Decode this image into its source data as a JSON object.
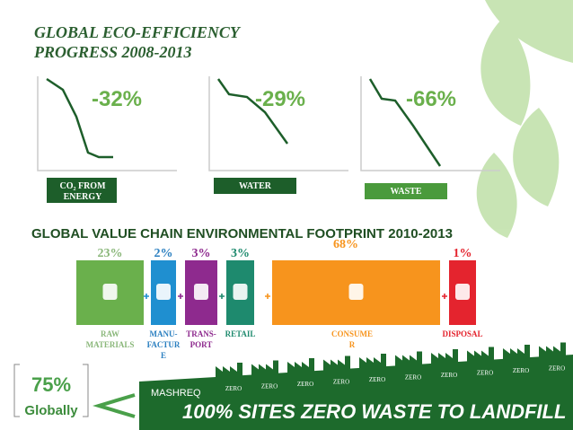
{
  "header": {
    "title_lines": [
      "GLOBAL ECO-EFFICIENCY",
      "PROGRESS 2008-2013"
    ]
  },
  "progress": [
    {
      "change": "-32%",
      "label_lines": [
        "CO₂ FROM",
        "ENERGY"
      ]
    },
    {
      "change": "-29%",
      "label_lines": [
        "WATER"
      ]
    },
    {
      "change": "-66%",
      "label_lines": [
        "WASTE"
      ]
    }
  ],
  "value_chain": {
    "title": "GLOBAL VALUE CHAIN ENVIRONMENTAL FOOTPRINT 2010-2013",
    "stages": [
      {
        "share": "23%",
        "label_lines": [
          "RAW",
          "MATERIALS"
        ]
      },
      {
        "share": "2%",
        "label_lines": [
          "MANU-",
          "FACTUR",
          "E"
        ]
      },
      {
        "share": "3%",
        "label_lines": [
          "TRANS-",
          "PORT"
        ]
      },
      {
        "share": "3%",
        "label_lines": [
          "RETAIL"
        ]
      },
      {
        "share": "68%",
        "label_lines": [
          "CONSUME",
          "R"
        ]
      },
      {
        "share": "1%",
        "label_lines": [
          "DISPOSAL"
        ]
      }
    ]
  },
  "footer": {
    "global_share": "75%",
    "global_label": "Globally",
    "region": "MASHREQ",
    "site_labels": [
      "ZERO",
      "ZERO",
      "ZERO",
      "ZERO",
      "ZERO",
      "ZERO",
      "ZERO",
      "ZERO",
      "ZERO",
      "ZERO"
    ],
    "banner": "100% SITES ZERO WASTE TO LANDFILL"
  }
}
